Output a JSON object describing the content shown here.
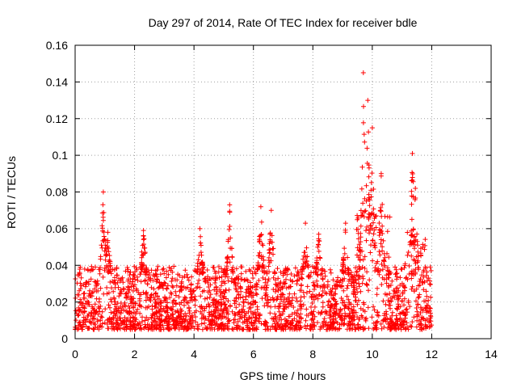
{
  "chart_data": {
    "type": "scatter",
    "title": "Day 297 of 2014, Rate Of TEC Index for receiver bdle",
    "xlabel": "GPS time / hours",
    "ylabel": "ROTI / TECUs",
    "xlim": [
      0,
      14
    ],
    "ylim": [
      0,
      0.16
    ],
    "x_ticks": [
      0,
      2,
      4,
      6,
      8,
      10,
      12,
      14
    ],
    "x_tick_labels": [
      "0",
      "2",
      "4",
      "6",
      "8",
      "10",
      "12",
      "14"
    ],
    "y_ticks": [
      0,
      0.02,
      0.04,
      0.06,
      0.08,
      0.1,
      0.12,
      0.14,
      0.16
    ],
    "y_tick_labels": [
      "0",
      "0.02",
      "0.04",
      "0.06",
      "0.08",
      "0.1",
      "0.12",
      "0.14",
      "0.16"
    ],
    "grid": true,
    "marker": "+",
    "marker_color": "#ff0000",
    "data_x_range_hours": [
      0,
      12
    ],
    "baseline_band": [
      0.005,
      0.035
    ],
    "peaks": [
      {
        "x": 0.95,
        "y": 0.08
      },
      {
        "x": 1.1,
        "y": 0.058
      },
      {
        "x": 2.3,
        "y": 0.059
      },
      {
        "x": 4.2,
        "y": 0.06
      },
      {
        "x": 5.2,
        "y": 0.073
      },
      {
        "x": 6.25,
        "y": 0.072
      },
      {
        "x": 6.6,
        "y": 0.07
      },
      {
        "x": 7.75,
        "y": 0.063
      },
      {
        "x": 8.2,
        "y": 0.057
      },
      {
        "x": 9.1,
        "y": 0.063
      },
      {
        "x": 9.7,
        "y": 0.145
      },
      {
        "x": 9.85,
        "y": 0.13
      },
      {
        "x": 10.0,
        "y": 0.115
      },
      {
        "x": 10.3,
        "y": 0.09
      },
      {
        "x": 11.35,
        "y": 0.101
      },
      {
        "x": 11.45,
        "y": 0.082
      }
    ]
  }
}
